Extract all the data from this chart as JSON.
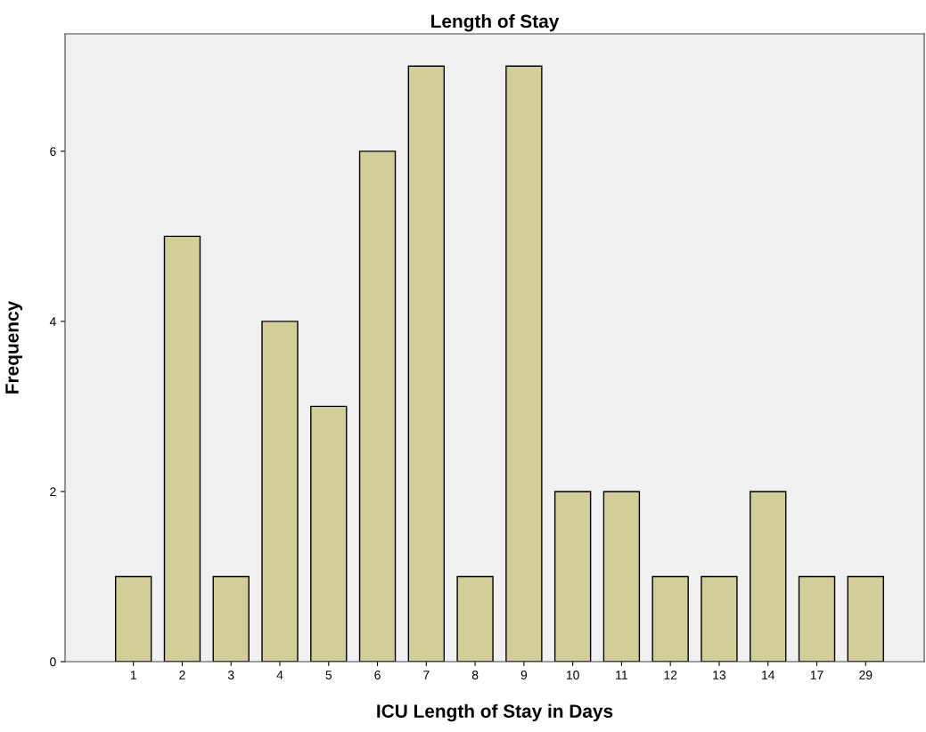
{
  "chart_data": {
    "type": "bar",
    "title": "Length of Stay",
    "xlabel": "ICU Length of Stay in Days",
    "ylabel": "Frequency",
    "categories": [
      "1",
      "2",
      "3",
      "4",
      "5",
      "6",
      "7",
      "8",
      "9",
      "10",
      "11",
      "12",
      "13",
      "14",
      "17",
      "29"
    ],
    "values": [
      1,
      5,
      1,
      4,
      3,
      6,
      7,
      1,
      7,
      2,
      2,
      1,
      1,
      2,
      1,
      1
    ],
    "color": "#d3ce98",
    "ylim": [
      0,
      7.38
    ],
    "yticks": [
      0,
      2,
      4,
      6
    ],
    "grid": false,
    "legend": false
  }
}
